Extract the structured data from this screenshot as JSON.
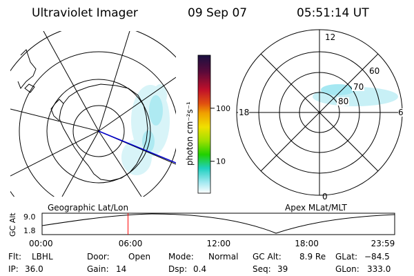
{
  "header": {
    "title": "Ultraviolet Imager",
    "date": "09 Sep 07",
    "time": "05:51:14 UT"
  },
  "panels": {
    "left_caption": "Geographic Lat/Lon",
    "right_caption": "Apex MLat/MLT"
  },
  "colorbar": {
    "unit_label": "photon cm⁻²s⁻¹",
    "ticks": [
      {
        "value": 100,
        "label": "100"
      },
      {
        "value": 10,
        "label": "10"
      }
    ],
    "log_scale": true,
    "colors": [
      "#1a1040",
      "#5a0a3a",
      "#c0102a",
      "#e05010",
      "#f0a000",
      "#f0e000",
      "#a0e000",
      "#20d000",
      "#20d0c0",
      "#a0e8f0",
      "#ffffff"
    ]
  },
  "mlt_plot": {
    "mlt_labels": [
      "12",
      "18",
      "6",
      "0"
    ],
    "mlat_labels": [
      "60",
      "70",
      "80"
    ]
  },
  "altitude_plot": {
    "y_axis_label": "GC Alt",
    "y_ticks": [
      "9.0",
      "1.8"
    ],
    "x_ticks": [
      "00:00",
      "06:00",
      "12:00",
      "18:00",
      "23:59"
    ],
    "current_time_hours": 5.85,
    "curve_color": "#000000",
    "marker_color": "#ff0000"
  },
  "status": {
    "row1": [
      {
        "label": "Flt:",
        "value": "LBHL"
      },
      {
        "label": "Door:",
        "value": "Open"
      },
      {
        "label": "Mode:",
        "value": "Normal"
      },
      {
        "label": "GC Alt:",
        "value": "8.9 Re"
      },
      {
        "label": "GLat:",
        "value": "−84.5"
      }
    ],
    "row2": [
      {
        "label": "IP:",
        "value": "36.0"
      },
      {
        "label": "Gain:",
        "value": "14"
      },
      {
        "label": "Dsp:",
        "value": "0.4"
      },
      {
        "label": "Seq:",
        "value": "39"
      },
      {
        "label": "GLon:",
        "value": "333.0"
      }
    ]
  }
}
